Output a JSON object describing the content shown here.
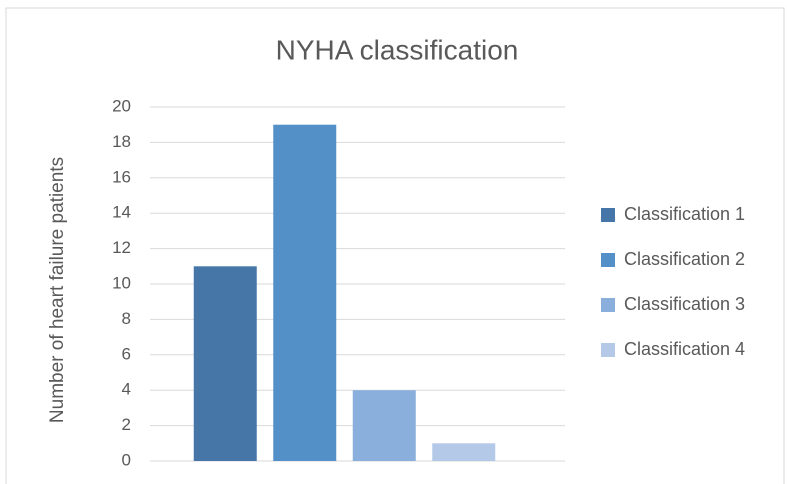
{
  "chart_data": {
    "type": "bar",
    "title": "NYHA classification",
    "y_label": "Number of heart failure patients",
    "categories": [
      null
    ],
    "series": [
      {
        "name": "Classification 1",
        "color": "#4676a8",
        "values": [
          11
        ]
      },
      {
        "name": "Classification 2",
        "color": "#5390c8",
        "values": [
          19
        ]
      },
      {
        "name": "Classification 3",
        "color": "#8aafdc",
        "values": [
          4
        ]
      },
      {
        "name": "Classification 4",
        "color": "#b4c9e8",
        "values": [
          1
        ]
      }
    ],
    "ylim": [
      0,
      20
    ],
    "yticks": [
      0,
      2,
      4,
      6,
      8,
      10,
      12,
      14,
      16,
      18,
      20
    ],
    "grid": true,
    "legend": "right"
  }
}
